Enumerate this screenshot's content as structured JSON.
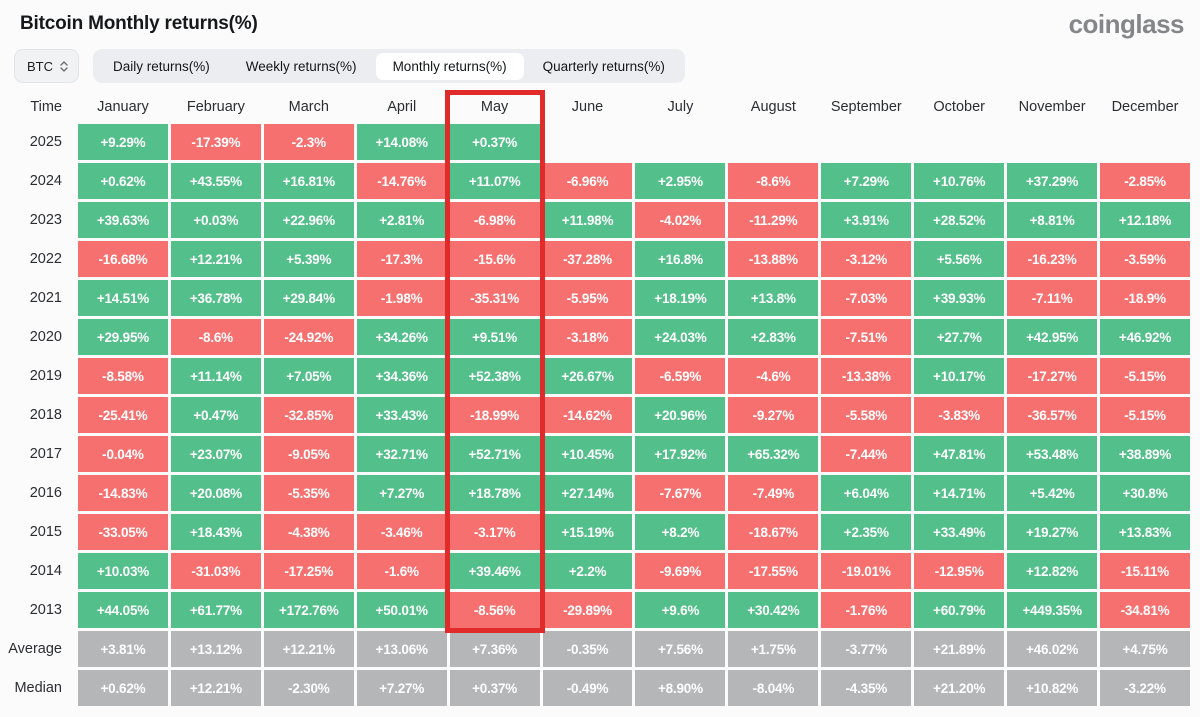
{
  "header": {
    "title": "Bitcoin Monthly returns(%)",
    "logo": "coinglass"
  },
  "controls": {
    "symbol": "BTC",
    "tabs": [
      {
        "label": "Daily returns(%)",
        "active": false
      },
      {
        "label": "Weekly returns(%)",
        "active": false
      },
      {
        "label": "Monthly returns(%)",
        "active": true
      },
      {
        "label": "Quarterly returns(%)",
        "active": false
      }
    ]
  },
  "table": {
    "time_label": "Time",
    "months": [
      "January",
      "February",
      "March",
      "April",
      "May",
      "June",
      "July",
      "August",
      "September",
      "October",
      "November",
      "December"
    ],
    "highlight_month": "May",
    "rows": [
      {
        "label": "2025",
        "summary": false,
        "values": [
          "+9.29%",
          "-17.39%",
          "-2.3%",
          "+14.08%",
          "+0.37%",
          "",
          "",
          "",
          "",
          "",
          "",
          ""
        ]
      },
      {
        "label": "2024",
        "summary": false,
        "values": [
          "+0.62%",
          "+43.55%",
          "+16.81%",
          "-14.76%",
          "+11.07%",
          "-6.96%",
          "+2.95%",
          "-8.6%",
          "+7.29%",
          "+10.76%",
          "+37.29%",
          "-2.85%"
        ]
      },
      {
        "label": "2023",
        "summary": false,
        "values": [
          "+39.63%",
          "+0.03%",
          "+22.96%",
          "+2.81%",
          "-6.98%",
          "+11.98%",
          "-4.02%",
          "-11.29%",
          "+3.91%",
          "+28.52%",
          "+8.81%",
          "+12.18%"
        ]
      },
      {
        "label": "2022",
        "summary": false,
        "values": [
          "-16.68%",
          "+12.21%",
          "+5.39%",
          "-17.3%",
          "-15.6%",
          "-37.28%",
          "+16.8%",
          "-13.88%",
          "-3.12%",
          "+5.56%",
          "-16.23%",
          "-3.59%"
        ]
      },
      {
        "label": "2021",
        "summary": false,
        "values": [
          "+14.51%",
          "+36.78%",
          "+29.84%",
          "-1.98%",
          "-35.31%",
          "-5.95%",
          "+18.19%",
          "+13.8%",
          "-7.03%",
          "+39.93%",
          "-7.11%",
          "-18.9%"
        ]
      },
      {
        "label": "2020",
        "summary": false,
        "values": [
          "+29.95%",
          "-8.6%",
          "-24.92%",
          "+34.26%",
          "+9.51%",
          "-3.18%",
          "+24.03%",
          "+2.83%",
          "-7.51%",
          "+27.7%",
          "+42.95%",
          "+46.92%"
        ]
      },
      {
        "label": "2019",
        "summary": false,
        "values": [
          "-8.58%",
          "+11.14%",
          "+7.05%",
          "+34.36%",
          "+52.38%",
          "+26.67%",
          "-6.59%",
          "-4.6%",
          "-13.38%",
          "+10.17%",
          "-17.27%",
          "-5.15%"
        ]
      },
      {
        "label": "2018",
        "summary": false,
        "values": [
          "-25.41%",
          "+0.47%",
          "-32.85%",
          "+33.43%",
          "-18.99%",
          "-14.62%",
          "+20.96%",
          "-9.27%",
          "-5.58%",
          "-3.83%",
          "-36.57%",
          "-5.15%"
        ]
      },
      {
        "label": "2017",
        "summary": false,
        "values": [
          "-0.04%",
          "+23.07%",
          "-9.05%",
          "+32.71%",
          "+52.71%",
          "+10.45%",
          "+17.92%",
          "+65.32%",
          "-7.44%",
          "+47.81%",
          "+53.48%",
          "+38.89%"
        ]
      },
      {
        "label": "2016",
        "summary": false,
        "values": [
          "-14.83%",
          "+20.08%",
          "-5.35%",
          "+7.27%",
          "+18.78%",
          "+27.14%",
          "-7.67%",
          "-7.49%",
          "+6.04%",
          "+14.71%",
          "+5.42%",
          "+30.8%"
        ]
      },
      {
        "label": "2015",
        "summary": false,
        "values": [
          "-33.05%",
          "+18.43%",
          "-4.38%",
          "-3.46%",
          "-3.17%",
          "+15.19%",
          "+8.2%",
          "-18.67%",
          "+2.35%",
          "+33.49%",
          "+19.27%",
          "+13.83%"
        ]
      },
      {
        "label": "2014",
        "summary": false,
        "values": [
          "+10.03%",
          "-31.03%",
          "-17.25%",
          "-1.6%",
          "+39.46%",
          "+2.2%",
          "-9.69%",
          "-17.55%",
          "-19.01%",
          "-12.95%",
          "+12.82%",
          "-15.11%"
        ]
      },
      {
        "label": "2013",
        "summary": false,
        "values": [
          "+44.05%",
          "+61.77%",
          "+172.76%",
          "+50.01%",
          "-8.56%",
          "-29.89%",
          "+9.6%",
          "+30.42%",
          "-1.76%",
          "+60.79%",
          "+449.35%",
          "-34.81%"
        ]
      },
      {
        "label": "Average",
        "summary": true,
        "values": [
          "+3.81%",
          "+13.12%",
          "+12.21%",
          "+13.06%",
          "+7.36%",
          "-0.35%",
          "+7.56%",
          "+1.75%",
          "-3.77%",
          "+21.89%",
          "+46.02%",
          "+4.75%"
        ]
      },
      {
        "label": "Median",
        "summary": true,
        "values": [
          "+0.62%",
          "+12.21%",
          "-2.30%",
          "+7.27%",
          "+0.37%",
          "-0.49%",
          "+8.90%",
          "-8.04%",
          "-4.35%",
          "+21.20%",
          "+10.82%",
          "-3.22%"
        ]
      }
    ]
  },
  "colors": {
    "positive": "#53bf8b",
    "negative": "#f77070",
    "summary": "#b5b6b8",
    "highlight": "#e12b2b"
  }
}
